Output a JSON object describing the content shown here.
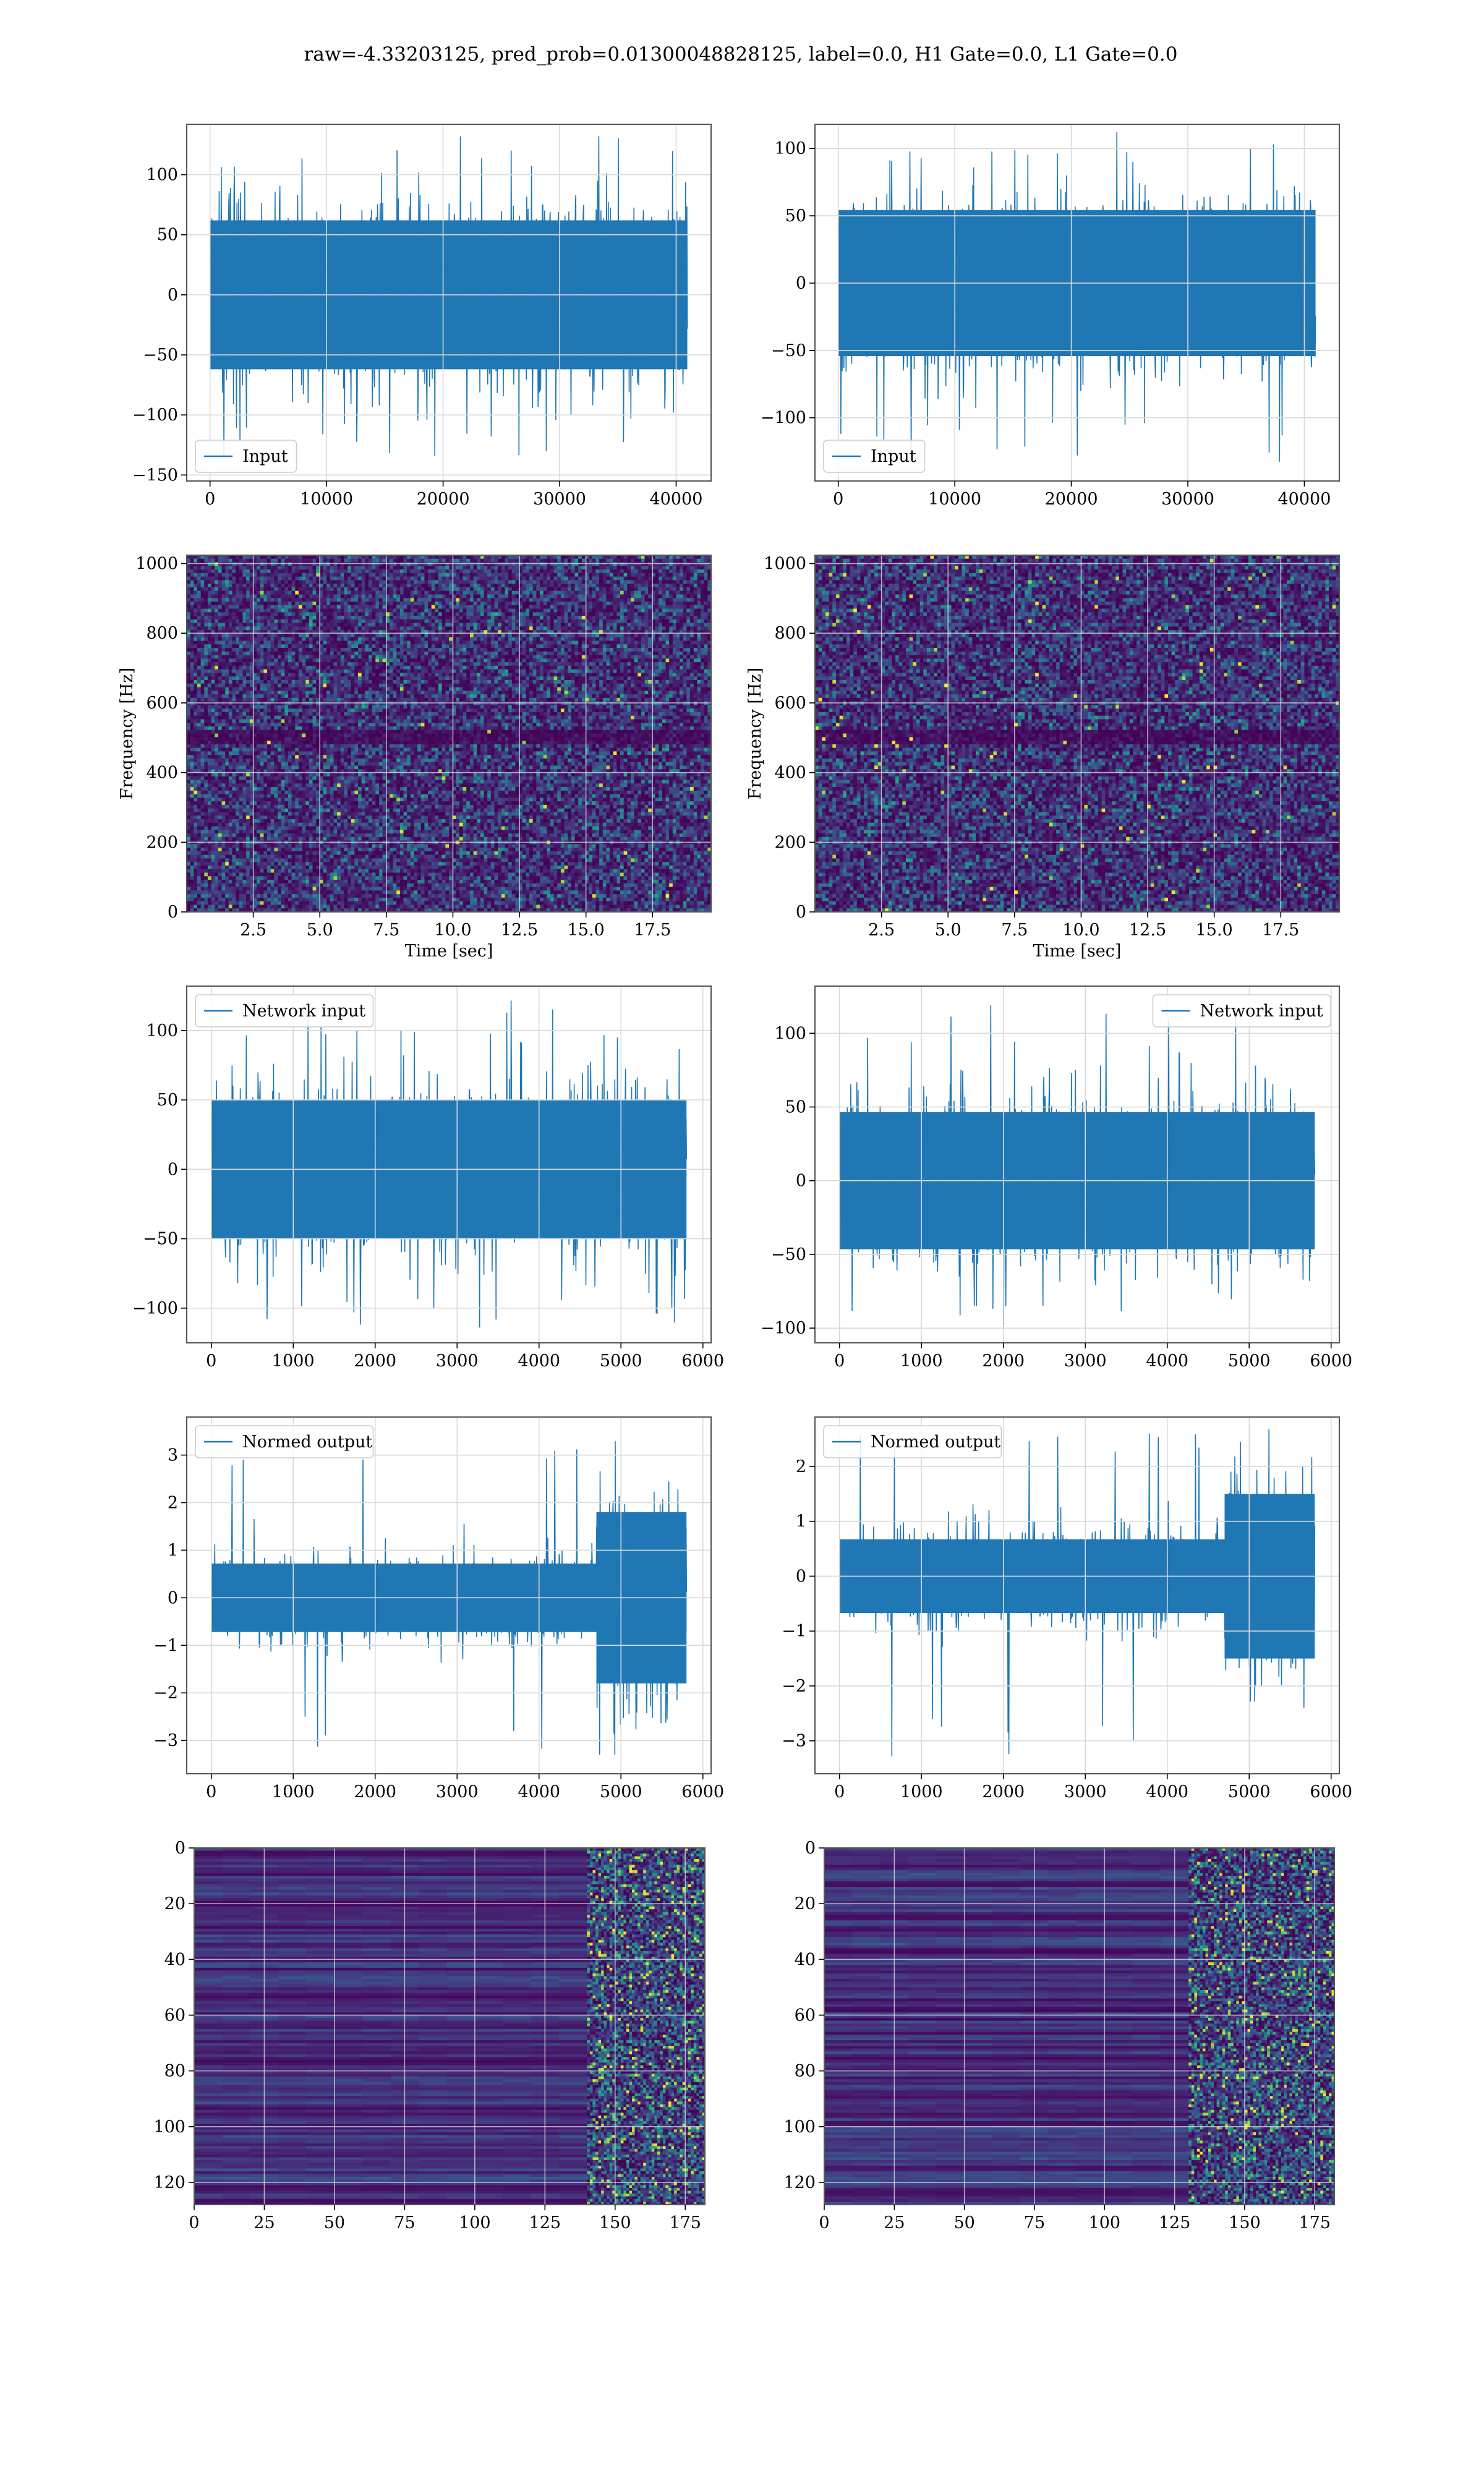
{
  "title": "raw=-4.33203125, pred_prob=0.01300048828125, label=0.0, H1 Gate=0.0, L1 Gate=0.0",
  "colors": {
    "line": "#1f77b4",
    "grid": "#d9d9d9",
    "axis": "#555555",
    "viridis": [
      "#440154",
      "#472d7b",
      "#3b528b",
      "#2c728e",
      "#21918c",
      "#28ae80",
      "#5ec962",
      "#addc30",
      "#fde725"
    ]
  },
  "chart_data": [
    {
      "id": "input_h1",
      "type": "line",
      "column": "left",
      "series": [
        {
          "name": "Input",
          "style": "dense-noise",
          "amplitude": 40,
          "extreme": [
            -138,
            132
          ],
          "n": 40960
        }
      ],
      "xlim": [
        -2000,
        43000
      ],
      "ylim": [
        -155,
        142
      ],
      "xticks": [
        0,
        10000,
        20000,
        30000,
        40000
      ],
      "yticks": [
        -150,
        -100,
        -50,
        0,
        50,
        100
      ],
      "legend": "lower-left",
      "grid": true,
      "xlabel": "",
      "ylabel": ""
    },
    {
      "id": "input_l1",
      "type": "line",
      "column": "right",
      "series": [
        {
          "name": "Input",
          "style": "dense-noise",
          "amplitude": 35,
          "extreme": [
            -133,
            114
          ],
          "n": 40960
        }
      ],
      "xlim": [
        -2000,
        43000
      ],
      "ylim": [
        -147,
        118
      ],
      "xticks": [
        0,
        10000,
        20000,
        30000,
        40000
      ],
      "yticks": [
        -100,
        -50,
        0,
        50,
        100
      ],
      "legend": "lower-left",
      "grid": true,
      "xlabel": "",
      "ylabel": ""
    },
    {
      "id": "spec_h1",
      "type": "heatmap",
      "column": "left",
      "xlim": [
        0,
        19.7
      ],
      "ylim": [
        0,
        1024
      ],
      "xticks": [
        2.5,
        5.0,
        7.5,
        10.0,
        12.5,
        15.0,
        17.5
      ],
      "yticks": [
        0,
        200,
        400,
        600,
        800,
        1000
      ],
      "xlabel": "Time [sec]",
      "ylabel": "Frequency [Hz]",
      "dark_band_hz": 500,
      "grid": true
    },
    {
      "id": "spec_l1",
      "type": "heatmap",
      "column": "right",
      "xlim": [
        0,
        19.7
      ],
      "ylim": [
        0,
        1024
      ],
      "xticks": [
        2.5,
        5.0,
        7.5,
        10.0,
        12.5,
        15.0,
        17.5
      ],
      "yticks": [
        0,
        200,
        400,
        600,
        800,
        1000
      ],
      "xlabel": "Time [sec]",
      "ylabel": "Frequency [Hz]",
      "dark_band_hz": 500,
      "grid": true
    },
    {
      "id": "net_h1",
      "type": "line",
      "column": "left",
      "series": [
        {
          "name": "Network input",
          "style": "dense-noise",
          "amplitude": 32,
          "extreme": [
            -114,
            122
          ],
          "n": 5800
        }
      ],
      "xlim": [
        -300,
        6100
      ],
      "ylim": [
        -125,
        132
      ],
      "xticks": [
        0,
        1000,
        2000,
        3000,
        4000,
        5000,
        6000
      ],
      "yticks": [
        -100,
        -50,
        0,
        50,
        100
      ],
      "legend": "upper-left",
      "grid": true,
      "xlabel": "",
      "ylabel": ""
    },
    {
      "id": "net_l1",
      "type": "line",
      "column": "right",
      "series": [
        {
          "name": "Network input",
          "style": "dense-noise",
          "amplitude": 30,
          "extreme": [
            -100,
            121
          ],
          "n": 5800
        }
      ],
      "xlim": [
        -300,
        6100
      ],
      "ylim": [
        -110,
        132
      ],
      "xticks": [
        0,
        1000,
        2000,
        3000,
        4000,
        5000,
        6000
      ],
      "yticks": [
        -100,
        -50,
        0,
        50,
        100
      ],
      "legend": "upper-right",
      "grid": true,
      "xlabel": "",
      "ylabel": ""
    },
    {
      "id": "norm_h1",
      "type": "line",
      "column": "left",
      "series": [
        {
          "name": "Normed output",
          "style": "burst-noise",
          "amplitude": 0.45,
          "burst_start": 4700,
          "burst_amplitude": 1.2,
          "extreme": [
            -3.3,
            3.5
          ],
          "n": 5800
        }
      ],
      "xlim": [
        -300,
        6100
      ],
      "ylim": [
        -3.7,
        3.8
      ],
      "xticks": [
        0,
        1000,
        2000,
        3000,
        4000,
        5000,
        6000
      ],
      "yticks": [
        -3,
        -2,
        -1,
        0,
        1,
        2,
        3
      ],
      "legend": "upper-left",
      "grid": true,
      "xlabel": "",
      "ylabel": ""
    },
    {
      "id": "norm_l1",
      "type": "line",
      "column": "right",
      "series": [
        {
          "name": "Normed output",
          "style": "burst-noise",
          "amplitude": 0.42,
          "burst_start": 4700,
          "burst_amplitude": 1.0,
          "extreme": [
            -3.3,
            2.7
          ],
          "n": 5800
        }
      ],
      "xlim": [
        -300,
        6100
      ],
      "ylim": [
        -3.6,
        2.9
      ],
      "xticks": [
        0,
        1000,
        2000,
        3000,
        4000,
        5000,
        6000
      ],
      "yticks": [
        -3,
        -2,
        -1,
        0,
        1,
        2
      ],
      "legend": "upper-left",
      "grid": true,
      "xlabel": "",
      "ylabel": ""
    },
    {
      "id": "feat_h1",
      "type": "heatmap",
      "column": "left",
      "xlim": [
        0,
        182
      ],
      "ylim": [
        128,
        0
      ],
      "xticks": [
        0,
        25,
        50,
        75,
        100,
        125,
        150,
        175
      ],
      "yticks": [
        0,
        20,
        40,
        60,
        80,
        100,
        120
      ],
      "rows": 128,
      "cols": 182,
      "active_from_col": 140,
      "grid": true,
      "xlabel": "",
      "ylabel": ""
    },
    {
      "id": "feat_l1",
      "type": "heatmap",
      "column": "right",
      "xlim": [
        0,
        182
      ],
      "ylim": [
        128,
        0
      ],
      "xticks": [
        0,
        25,
        50,
        75,
        100,
        125,
        150,
        175
      ],
      "yticks": [
        0,
        20,
        40,
        60,
        80,
        100,
        120
      ],
      "rows": 128,
      "cols": 182,
      "active_from_col": 125,
      "grid": true,
      "xlabel": "",
      "ylabel": ""
    }
  ]
}
